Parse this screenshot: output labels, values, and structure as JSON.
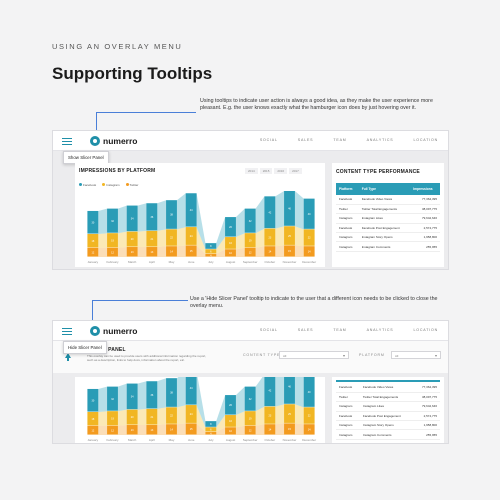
{
  "page": {
    "eyebrow": "USING AN OVERLAY MENU",
    "title": "Supporting Tooltips",
    "note1": "Using tooltips to indicate user action is always a good idea, as they make the user experience more pleasant. E.g. the user knows exactly what the hamburger icon does by just hovering over it.",
    "note2": "Use a 'Hide Slicer Panel' tooltip to indicate to the user that a different icon needs to be clicked to close the overlay menu.",
    "accent": "#4a7fd8"
  },
  "app": {
    "logo": "numerro",
    "nav": [
      "SOCIAL",
      "SALES",
      "TEAM",
      "ANALYTICS",
      "LOCATION"
    ],
    "brand_color": "#1f8fa8"
  },
  "screen1": {
    "tooltip": "Show Slicer Panel",
    "chart_title": "IMPRESSIONS BY PLATFORM",
    "years": [
      "2014",
      "2015",
      "2016",
      "2017"
    ],
    "legend": [
      "Facebook",
      "Instagram",
      "Twitter"
    ],
    "table_title": "CONTENT TYPE PERFORMANCE"
  },
  "screen2": {
    "tooltip": "Hide Slicer Panel",
    "panel_title": "SLICER PANEL",
    "panel_text": "This overlay can be used to provide users with additional information regarding the report, such as a description, links to help docs, information about the report, etc.",
    "filter1_label": "CONTENT TYPE",
    "filter1_value": "All",
    "filter2_label": "PLATFORM",
    "filter2_value": "All"
  },
  "table": {
    "headers": [
      "Platform",
      "Full Type",
      "Impressions"
    ],
    "rows": [
      [
        "Facebook",
        "Facebook Video Views",
        "77,364,395"
      ],
      [
        "Twitter",
        "Twitter Total Engagements",
        "38,097,775"
      ],
      [
        "Instagram",
        "Instagram Likes",
        "79,642,646"
      ],
      [
        "Facebook",
        "Facebook Post Engagement",
        "2,574,775"
      ],
      [
        "Instagram",
        "Instagram Story Opens",
        "1,958,800"
      ],
      [
        "Instagram",
        "Instagram Comments",
        "255,955"
      ]
    ]
  },
  "chart_data": {
    "type": "bar",
    "categories": [
      "January",
      "February",
      "March",
      "April",
      "May",
      "June",
      "July",
      "August",
      "September",
      "October",
      "November",
      "December"
    ],
    "series": [
      {
        "name": "Facebook",
        "values": [
          30,
          32,
          34,
          36,
          38,
          44,
          8,
          26,
          32,
          42,
          46,
          40
        ]
      },
      {
        "name": "Instagram",
        "values": [
          18,
          19,
          20,
          21,
          22,
          24,
          6,
          16,
          19,
          23,
          25,
          22
        ]
      },
      {
        "name": "Twitter",
        "values": [
          12,
          12,
          13,
          13,
          14,
          15,
          4,
          10,
          12,
          14,
          15,
          14
        ]
      }
    ],
    "legend": "top-left",
    "colors": [
      "#2a9cb6",
      "#f1b623",
      "#f39b1f"
    ]
  }
}
